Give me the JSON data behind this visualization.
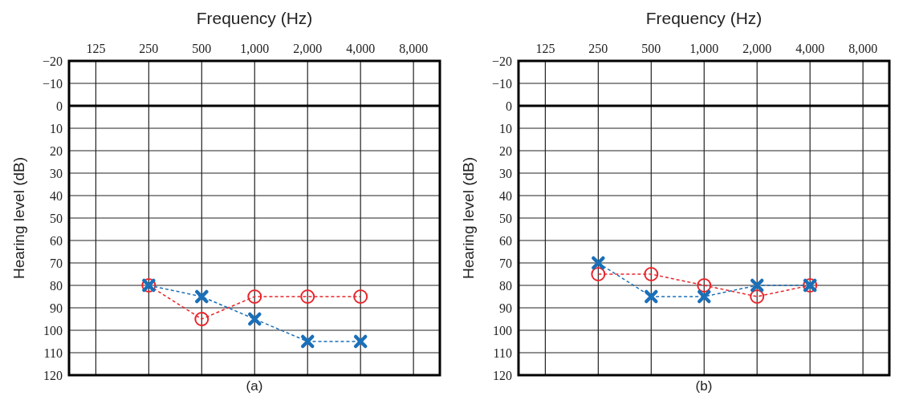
{
  "chart_data": [
    {
      "type": "line",
      "xlabel": "Frequency (Hz)",
      "ylabel": "Hearing level (dB)",
      "annotations": [
        "(a)"
      ],
      "log": "x",
      "x": [
        250,
        500,
        1000,
        2000,
        4000
      ],
      "xlim": [
        88,
        11300
      ],
      "xticks": [
        125,
        250,
        500,
        {
          "value": 1000,
          "label": "1,000"
        },
        {
          "value": 2000,
          "label": "2,000"
        },
        {
          "value": 4000,
          "label": "4,000"
        },
        {
          "value": 8000,
          "label": "8,000"
        }
      ],
      "ylim": [
        120,
        -20
      ],
      "yticks": [
        -20,
        -10,
        0,
        10,
        20,
        30,
        40,
        50,
        60,
        70,
        80,
        90,
        100,
        110,
        120
      ],
      "grid": true,
      "line_style": "dashed",
      "ref_lines": [
        {
          "axis": "y",
          "value": 0,
          "color": "#000000"
        }
      ],
      "series": [
        {
          "color": "#e8262b",
          "marker": "circle",
          "values": [
            80,
            95,
            85,
            85,
            85
          ]
        },
        {
          "color": "#1a6fb8",
          "marker": "cross",
          "values": [
            80,
            85,
            95,
            105,
            105
          ]
        }
      ]
    },
    {
      "type": "line",
      "xlabel": "Frequency (Hz)",
      "ylabel": "Hearing level (dB)",
      "annotations": [
        "(b)"
      ],
      "log": "x",
      "x": [
        250,
        500,
        1000,
        2000,
        4000
      ],
      "xlim": [
        88,
        11300
      ],
      "xticks": [
        125,
        250,
        500,
        {
          "value": 1000,
          "label": "1,000"
        },
        {
          "value": 2000,
          "label": "2,000"
        },
        {
          "value": 4000,
          "label": "4,000"
        },
        {
          "value": 8000,
          "label": "8,000"
        }
      ],
      "ylim": [
        120,
        -20
      ],
      "yticks": [
        -20,
        -10,
        0,
        10,
        20,
        30,
        40,
        50,
        60,
        70,
        80,
        90,
        100,
        110,
        120
      ],
      "grid": true,
      "line_style": "dashed",
      "ref_lines": [
        {
          "axis": "y",
          "value": 0,
          "color": "#000000"
        }
      ],
      "series": [
        {
          "color": "#e8262b",
          "marker": "circle",
          "values": [
            75,
            75,
            80,
            85,
            80
          ]
        },
        {
          "color": "#1a6fb8",
          "marker": "cross",
          "values": [
            70,
            85,
            85,
            80,
            80
          ]
        }
      ]
    }
  ]
}
